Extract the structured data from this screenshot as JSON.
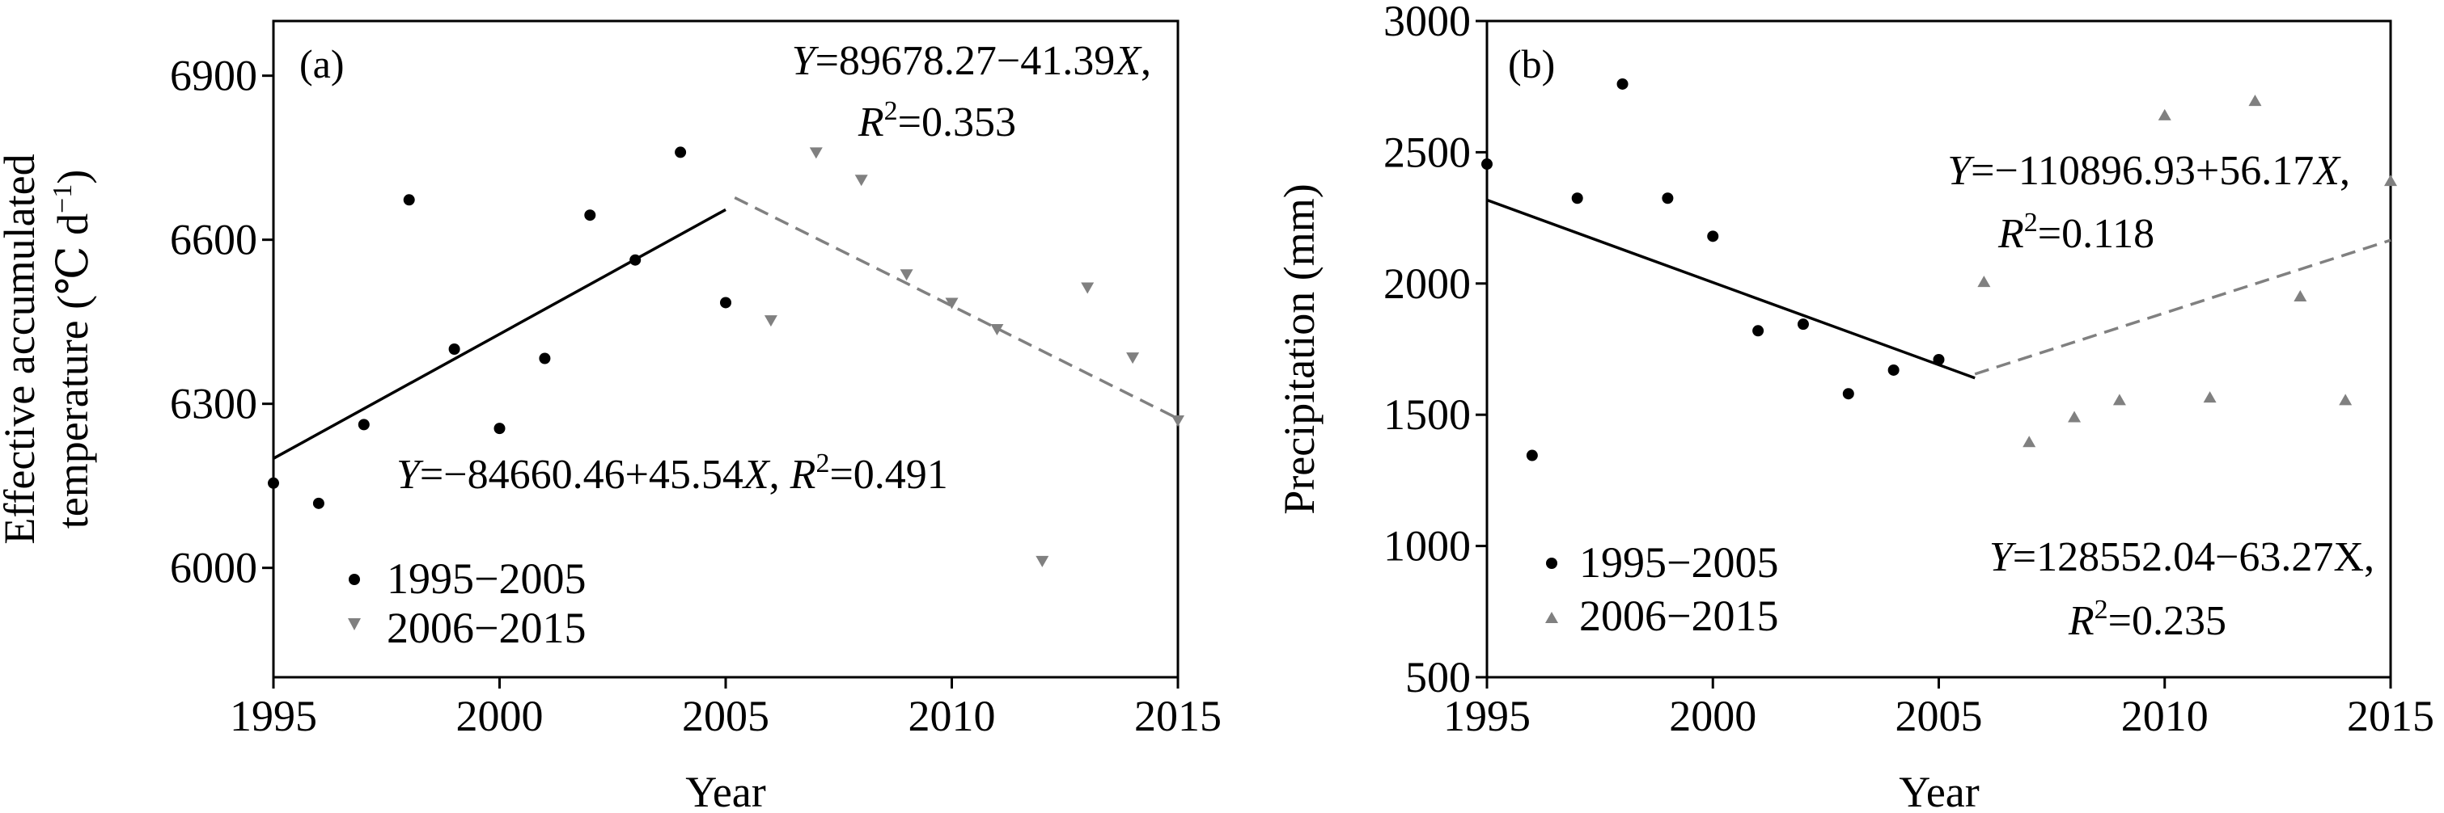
{
  "chart_data": [
    {
      "type": "scatter",
      "panel_label": "(a)",
      "xlabel": "Year",
      "ylabel_line1": "Effective accumulated",
      "ylabel_line2": "temperature (℃  d",
      "ylabel_sup": "−1",
      "ylabel_close": ")",
      "xlim": [
        1995,
        2015
      ],
      "ylim": [
        5800,
        7000
      ],
      "xticks": [
        1995,
        2000,
        2005,
        2010,
        2015
      ],
      "yticks": [
        6000,
        6300,
        6600,
        6900
      ],
      "series": [
        {
          "name": "1995−2005",
          "marker": "circle",
          "color": "#000000",
          "points": [
            [
              1995,
              6155
            ],
            [
              1996,
              6118
            ],
            [
              1997,
              6262
            ],
            [
              1998,
              6673
            ],
            [
              1999,
              6400
            ],
            [
              2000,
              6255
            ],
            [
              2001,
              6383
            ],
            [
              2002,
              6645
            ],
            [
              2003,
              6563
            ],
            [
              2004,
              6760
            ],
            [
              2005,
              6485
            ]
          ],
          "fit": {
            "x": [
              1995,
              2005
            ],
            "y": [
              6200,
              6655
            ],
            "style": "solid"
          }
        },
        {
          "name": "2006−2015",
          "marker": "triangle-down",
          "color": "#808080",
          "points": [
            [
              2006,
              6453
            ],
            [
              2007,
              6760
            ],
            [
              2008,
              6710
            ],
            [
              2009,
              6537
            ],
            [
              2010,
              6485
            ],
            [
              2011,
              6437
            ],
            [
              2012,
              6013
            ],
            [
              2013,
              6513
            ],
            [
              2014,
              6385
            ],
            [
              2015,
              6270
            ]
          ],
          "fit": {
            "x": [
              2005.2,
              2015
            ],
            "y": [
              6677,
              6273
            ],
            "style": "dashed"
          }
        }
      ],
      "annotations": {
        "eq_2006_a": "Y",
        "eq_2006_b": "=89678.27−41.39",
        "eq_2006_c": "X",
        "eq_2006_d": ",",
        "r2_2006_a": "R",
        "r2_2006_b": "2",
        "r2_2006_c": "=0.353",
        "eq_1995_a": "Y",
        "eq_1995_b": "=−84660.46+45.54",
        "eq_1995_c": "X",
        "eq_1995_d": ", ",
        "eq_1995_e": "R",
        "eq_1995_f": "2",
        "eq_1995_g": "=0.491"
      },
      "legend": [
        "1995−2005",
        "2006−2015"
      ],
      "legend_position": "bottom-left"
    },
    {
      "type": "scatter",
      "panel_label": "(b)",
      "xlabel": "Year",
      "ylabel": "Precipitation (mm)",
      "xlim": [
        1995,
        2015
      ],
      "ylim": [
        500,
        3000
      ],
      "xticks": [
        1995,
        2000,
        2005,
        2010,
        2015
      ],
      "yticks": [
        500,
        1000,
        1500,
        2000,
        2500,
        3000
      ],
      "series": [
        {
          "name": "1995−2005",
          "marker": "circle",
          "color": "#000000",
          "points": [
            [
              1995,
              2455
            ],
            [
              1996,
              1345
            ],
            [
              1997,
              2325
            ],
            [
              1998,
              2760
            ],
            [
              1999,
              2325
            ],
            [
              2000,
              2180
            ],
            [
              2001,
              1820
            ],
            [
              2002,
              1845
            ],
            [
              2003,
              1580
            ],
            [
              2004,
              1670
            ],
            [
              2005,
              1710
            ]
          ],
          "fit": {
            "x": [
              1995,
              2005.8
            ],
            "y": [
              2318,
              1640
            ],
            "style": "solid"
          }
        },
        {
          "name": "2006−2015",
          "marker": "triangle-up",
          "color": "#808080",
          "points": [
            [
              2006,
              2005
            ],
            [
              2007,
              1395
            ],
            [
              2008,
              1490
            ],
            [
              2009,
              1555
            ],
            [
              2010,
              2640
            ],
            [
              2011,
              1565
            ],
            [
              2012,
              2695
            ],
            [
              2013,
              1950
            ],
            [
              2014,
              1555
            ],
            [
              2015,
              2390
            ]
          ],
          "fit": {
            "x": [
              2005.8,
              2015
            ],
            "y": [
              1655,
              2165
            ],
            "style": "dashed"
          }
        }
      ],
      "annotations": {
        "eq_2006_a": "Y",
        "eq_2006_b": "=−110896.93+56.17",
        "eq_2006_c": "X",
        "eq_2006_d": ",",
        "r2_2006_a": "R",
        "r2_2006_b": "2",
        "r2_2006_c": "=0.118",
        "eq_1995_a": "Y",
        "eq_1995_b": "=128552.04−63.27X,",
        "r2_1995_a": "R",
        "r2_1995_b": "2",
        "r2_1995_c": "=0.235"
      },
      "legend": [
        "1995−2005",
        "2006−2015"
      ],
      "legend_position": "bottom-left"
    }
  ]
}
